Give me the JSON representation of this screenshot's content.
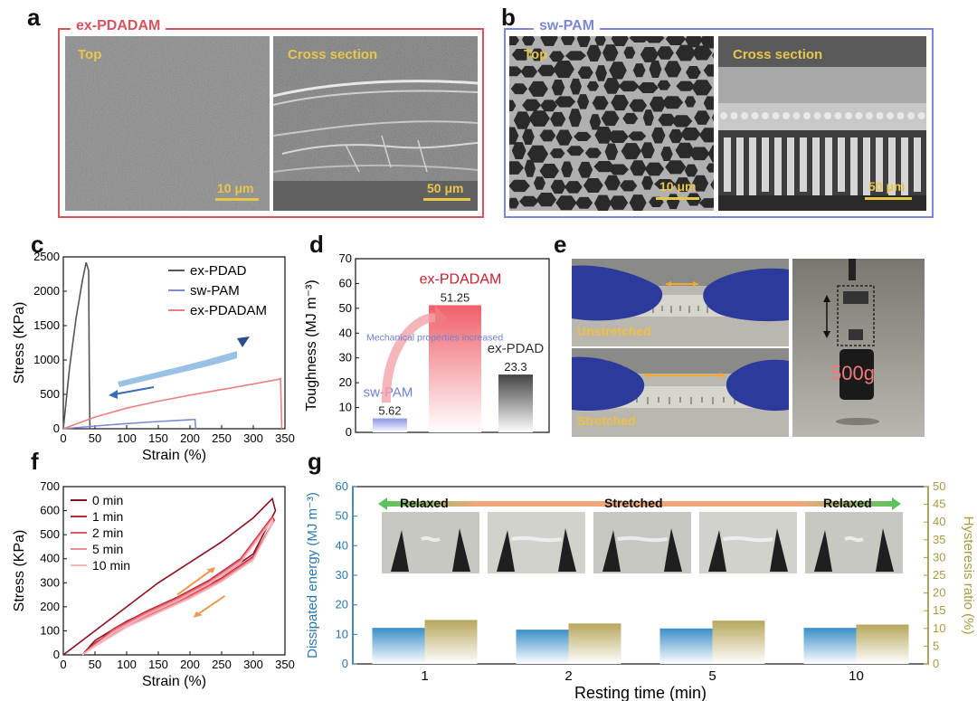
{
  "panels": {
    "a": {
      "letter": "a",
      "title": "ex-PDADAM",
      "top_label": "Top",
      "cross_label": "Cross section",
      "scale_top": "10 μm",
      "scale_cross": "50 μm",
      "frame_color": "#d9525c"
    },
    "b": {
      "letter": "b",
      "title": "sw-PAM",
      "top_label": "Top",
      "cross_label": "Cross section",
      "scale_top": "10 μm",
      "scale_cross": "50 μm",
      "frame_color": "#7b88d6"
    },
    "c": {
      "letter": "c"
    },
    "d": {
      "letter": "d"
    },
    "e": {
      "letter": "e",
      "unstretched": "Unstretched",
      "stretched": "Stretched",
      "weight": "500g"
    },
    "f": {
      "letter": "f"
    },
    "g": {
      "letter": "g",
      "relaxed_left": "Relaxed",
      "stretched": "Stretched",
      "relaxed_right": "Relaxed"
    }
  },
  "chart_data": [
    {
      "id": "c",
      "type": "line",
      "xlabel": "Strain (%)",
      "ylabel": "Stress (KPa)",
      "xlim": [
        0,
        350
      ],
      "ylim": [
        0,
        2500
      ],
      "xticks": [
        0,
        50,
        100,
        150,
        200,
        250,
        300,
        350
      ],
      "yticks": [
        0,
        500,
        1000,
        1500,
        2000,
        2500
      ],
      "legend_position": "top-right",
      "series": [
        {
          "name": "ex-PDAD",
          "color": "#555555",
          "x": [
            0,
            10,
            20,
            30,
            36,
            40,
            41,
            42
          ],
          "y": [
            0,
            900,
            1600,
            2150,
            2420,
            2300,
            800,
            0
          ]
        },
        {
          "name": "sw-PAM",
          "color": "#7f8ad6",
          "x": [
            0,
            50,
            100,
            150,
            200,
            208,
            209
          ],
          "y": [
            0,
            40,
            75,
            105,
            130,
            135,
            0
          ]
        },
        {
          "name": "ex-PDADAM",
          "color": "#ee7f7f",
          "x": [
            0,
            50,
            100,
            150,
            200,
            250,
            300,
            340,
            343,
            345
          ],
          "y": [
            0,
            170,
            300,
            400,
            490,
            570,
            650,
            720,
            730,
            0
          ]
        }
      ]
    },
    {
      "id": "d",
      "type": "bar",
      "ylabel": "Toughness (MJ m⁻³)",
      "ylim": [
        0,
        70
      ],
      "yticks": [
        0,
        10,
        20,
        30,
        40,
        50,
        60,
        70
      ],
      "categories": [
        "sw-PAM",
        "ex-PDADAM",
        "ex-PDAD"
      ],
      "values": [
        5.62,
        51.25,
        23.3
      ],
      "value_labels": [
        "5.62",
        "51.25",
        "23.3"
      ],
      "colors": [
        "#8b97e6",
        "#f0606a",
        "#444444"
      ],
      "label_colors": [
        "#6f7fd6",
        "#c8202a",
        "#333333"
      ],
      "annotation": "Mechanical properties increased"
    },
    {
      "id": "f",
      "type": "line",
      "xlabel": "Strain (%)",
      "ylabel": "Stress (KPa)",
      "xlim": [
        0,
        350
      ],
      "ylim": [
        0,
        700
      ],
      "xticks": [
        0,
        50,
        100,
        150,
        200,
        250,
        300,
        350
      ],
      "yticks": [
        0,
        100,
        200,
        300,
        400,
        500,
        600,
        700
      ],
      "legend_position": "top-left",
      "series": [
        {
          "name": "0 min",
          "color": "#8a1020",
          "x": [
            0,
            50,
            100,
            150,
            200,
            250,
            300,
            330,
            335,
            300,
            250,
            200,
            150,
            100,
            50,
            30
          ],
          "y": [
            0,
            100,
            200,
            300,
            385,
            470,
            570,
            650,
            600,
            420,
            330,
            260,
            200,
            140,
            60,
            0
          ]
        },
        {
          "name": "1 min",
          "color": "#c02838",
          "x": [
            30,
            80,
            130,
            180,
            230,
            280,
            330,
            333,
            300,
            250,
            200,
            150,
            100,
            50,
            30
          ],
          "y": [
            0,
            110,
            180,
            240,
            310,
            400,
            575,
            560,
            410,
            320,
            250,
            190,
            130,
            50,
            0
          ]
        },
        {
          "name": "2 min",
          "color": "#e05a66",
          "x": [
            30,
            80,
            130,
            180,
            230,
            280,
            330,
            332,
            300,
            250,
            200,
            150,
            100,
            50,
            30
          ],
          "y": [
            0,
            105,
            175,
            235,
            305,
            395,
            570,
            555,
            405,
            315,
            245,
            185,
            125,
            45,
            0
          ]
        },
        {
          "name": "5 min",
          "color": "#ee8c94",
          "x": [
            30,
            80,
            130,
            180,
            230,
            280,
            330,
            331,
            300,
            250,
            200,
            150,
            100,
            50,
            30
          ],
          "y": [
            0,
            100,
            170,
            230,
            300,
            390,
            565,
            550,
            400,
            310,
            240,
            180,
            120,
            40,
            0
          ]
        },
        {
          "name": "10 min",
          "color": "#f6b8bc",
          "x": [
            30,
            80,
            130,
            180,
            230,
            280,
            330,
            330,
            300,
            250,
            200,
            150,
            100,
            50,
            30
          ],
          "y": [
            0,
            95,
            165,
            225,
            295,
            385,
            560,
            545,
            395,
            305,
            235,
            175,
            115,
            35,
            0
          ]
        }
      ]
    },
    {
      "id": "g",
      "type": "bar",
      "xlabel": "Resting time (min)",
      "ylabel": "Dissipated energy (MJ m⁻³)",
      "y2label": "Hysteresis ratio (%)",
      "ylim": [
        0,
        60
      ],
      "y2lim": [
        0,
        50
      ],
      "yticks": [
        0,
        10,
        20,
        30,
        40,
        50,
        60
      ],
      "y2ticks": [
        0,
        5,
        10,
        15,
        20,
        25,
        30,
        35,
        40,
        45,
        50
      ],
      "categories": [
        "1",
        "2",
        "5",
        "10"
      ],
      "series": [
        {
          "name": "Dissipated energy",
          "axis": "left",
          "color": "#3b8fc8",
          "values": [
            12.2,
            11.6,
            12.0,
            12.2
          ]
        },
        {
          "name": "Hysteresis ratio",
          "axis": "right",
          "color": "#b7a75c",
          "values": [
            12.4,
            11.4,
            12.2,
            11.1
          ]
        }
      ]
    }
  ]
}
